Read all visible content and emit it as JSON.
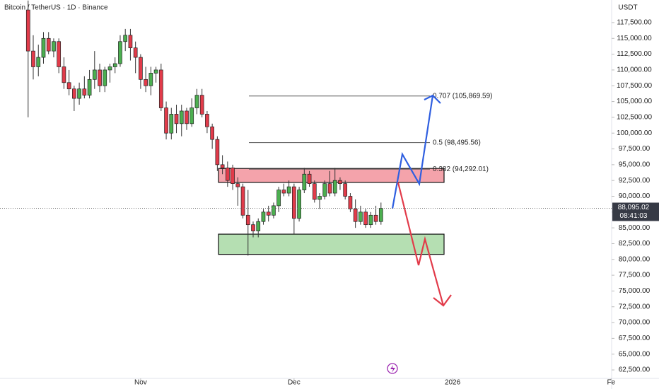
{
  "chart_data": {
    "type": "candlestick",
    "title": "Bitcoin / TetherUS · 1D · Binance",
    "y_axis_label": "USDT",
    "up_color": "#4caf50",
    "down_color": "#e23b4a",
    "open": [
      119500,
      113000,
      110500,
      112000,
      115000,
      113000,
      114500,
      110500,
      108000,
      107000,
      105500,
      107000,
      106000,
      108500,
      110000,
      107500,
      110000,
      110500,
      111000,
      114500,
      115500,
      113500,
      112000,
      108500,
      107500,
      109500,
      110000,
      104000,
      100000,
      103000,
      101500,
      103500,
      101500,
      104000,
      106000,
      103000,
      101000,
      99000,
      95000,
      94500,
      94500,
      92000,
      91500,
      87000,
      85500,
      84500,
      86000,
      87500,
      87000,
      88500,
      91000,
      90500,
      91500,
      86500,
      91000,
      93500,
      92000,
      89500,
      90000,
      92000,
      90500,
      92500,
      92000,
      90000,
      88000,
      86000,
      87500,
      85500,
      87000,
      86000
    ],
    "high": [
      121000,
      115500,
      114000,
      116000,
      116000,
      115000,
      115000,
      112000,
      110000,
      107500,
      108000,
      109000,
      110000,
      113000,
      111000,
      110500,
      111000,
      112000,
      115500,
      116500,
      116500,
      114500,
      112500,
      110500,
      110500,
      110500,
      111000,
      105000,
      104000,
      104500,
      104500,
      104000,
      105500,
      107000,
      107000,
      103500,
      101500,
      99500,
      96500,
      95500,
      95000,
      93000,
      92000,
      91000,
      86000,
      86500,
      88000,
      88500,
      89000,
      91500,
      92000,
      92500,
      92000,
      91500,
      94500,
      94000,
      92500,
      90500,
      92500,
      94000,
      94500,
      93000,
      92500,
      90500,
      89500,
      88500,
      88000,
      87500,
      88500,
      89000
    ],
    "low": [
      102500,
      108500,
      109000,
      111000,
      112500,
      112000,
      109500,
      107000,
      106000,
      103500,
      104500,
      105500,
      105500,
      107000,
      106500,
      106500,
      108000,
      109500,
      110500,
      113000,
      111500,
      109500,
      107000,
      106500,
      106000,
      108000,
      103500,
      99000,
      99000,
      100000,
      99500,
      100500,
      101000,
      103000,
      102500,
      100000,
      97500,
      94000,
      93500,
      91500,
      91000,
      88500,
      86500,
      80600,
      83500,
      83500,
      85500,
      86000,
      86500,
      87500,
      90000,
      90000,
      84000,
      86000,
      90500,
      91500,
      89000,
      88000,
      89500,
      90000,
      90000,
      91000,
      89500,
      87500,
      85000,
      85500,
      85000,
      85000,
      85500,
      85500
    ],
    "close": [
      113000,
      110500,
      112000,
      115000,
      113000,
      114500,
      110500,
      108000,
      107000,
      105500,
      107000,
      106000,
      108500,
      110000,
      107500,
      110000,
      110500,
      111000,
      114500,
      115500,
      113500,
      112000,
      108500,
      107500,
      109500,
      110000,
      104000,
      100000,
      103000,
      101500,
      103500,
      101500,
      104000,
      106000,
      103000,
      101000,
      99000,
      95000,
      94500,
      92500,
      92000,
      91500,
      87000,
      85500,
      84500,
      86000,
      87500,
      87000,
      88500,
      91000,
      90500,
      91500,
      86500,
      91000,
      93500,
      92000,
      89500,
      90000,
      92000,
      90500,
      92500,
      92000,
      90000,
      88000,
      86000,
      87500,
      85500,
      87000,
      86000,
      88095.02
    ],
    "last_price_label": "88,095.02",
    "countdown": "08:41:03",
    "xlim": [
      -5.5,
      114.1
    ],
    "xticks": [
      {
        "value": 22,
        "label": "Nov"
      },
      {
        "value": 52,
        "label": "Dec"
      },
      {
        "value": 83,
        "label": "2026"
      },
      {
        "value": 114,
        "label": "Fe"
      }
    ],
    "ylim": [
      61160,
      121080
    ],
    "yticks": [
      {
        "value": 62500,
        "label": "62,500.00"
      },
      {
        "value": 65000,
        "label": "65,000.00"
      },
      {
        "value": 67500,
        "label": "67,500.00"
      },
      {
        "value": 70000,
        "label": "70,000.00"
      },
      {
        "value": 72500,
        "label": "72,500.00"
      },
      {
        "value": 75000,
        "label": "75,000.00"
      },
      {
        "value": 77500,
        "label": "77,500.00"
      },
      {
        "value": 80000,
        "label": "80,000.00"
      },
      {
        "value": 82500,
        "label": "82,500.00"
      },
      {
        "value": 85000,
        "label": "85,000.00"
      },
      {
        "value": 87500,
        "label": "87,500.00"
      },
      {
        "value": 90000,
        "label": "90,000.00"
      },
      {
        "value": 92500,
        "label": "92,500.00"
      },
      {
        "value": 95000,
        "label": "95,000.00"
      },
      {
        "value": 97500,
        "label": "97,500.00"
      },
      {
        "value": 100000,
        "label": "100,000.00"
      },
      {
        "value": 102500,
        "label": "102,500.00"
      },
      {
        "value": 105000,
        "label": "105,000.00"
      },
      {
        "value": 107500,
        "label": "107,500.00"
      },
      {
        "value": 110000,
        "label": "110,000.00"
      },
      {
        "value": 112500,
        "label": "112,500.00"
      },
      {
        "value": 115000,
        "label": "115,000.00"
      },
      {
        "value": 117500,
        "label": "117,500.00"
      }
    ],
    "fib_levels": [
      {
        "value": 105869.59,
        "label": "0.707 (105,869.59)"
      },
      {
        "value": 98495.56,
        "label": "0.5 (98,495.56)"
      },
      {
        "value": 94292.01,
        "label": "0.382 (94,292.01)"
      }
    ],
    "zones": [
      {
        "range": [
          92200,
          94400
        ],
        "color": "#f4a3ab"
      },
      {
        "range": [
          80800,
          84000
        ],
        "color": "#b5dfb2"
      }
    ]
  }
}
